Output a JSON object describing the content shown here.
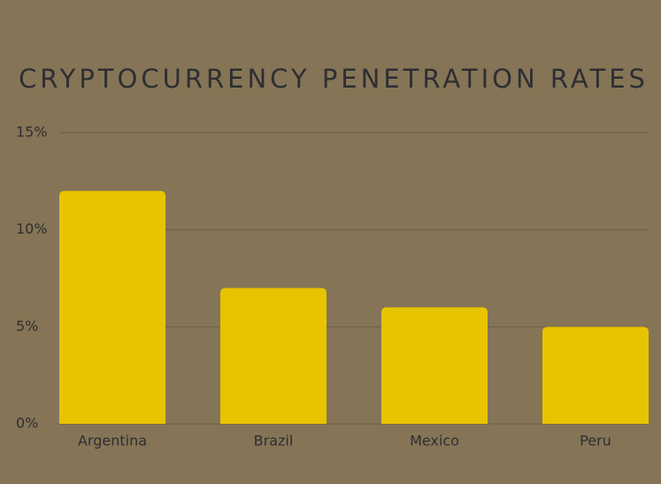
{
  "chart_data": {
    "type": "bar",
    "title": "CRYPTOCURRENCY PENETRATION RATES",
    "categories": [
      "Argentina",
      "Brazil",
      "Mexico",
      "Peru"
    ],
    "values": [
      12,
      7,
      6,
      5
    ],
    "color": "#e8c300",
    "ylim": [
      0,
      15
    ],
    "yticks": [
      {
        "value": 0,
        "label": "0%"
      },
      {
        "value": 5,
        "label": "5%"
      },
      {
        "value": 10,
        "label": "10%"
      },
      {
        "value": 15,
        "label": "15%"
      }
    ],
    "grid": true
  }
}
